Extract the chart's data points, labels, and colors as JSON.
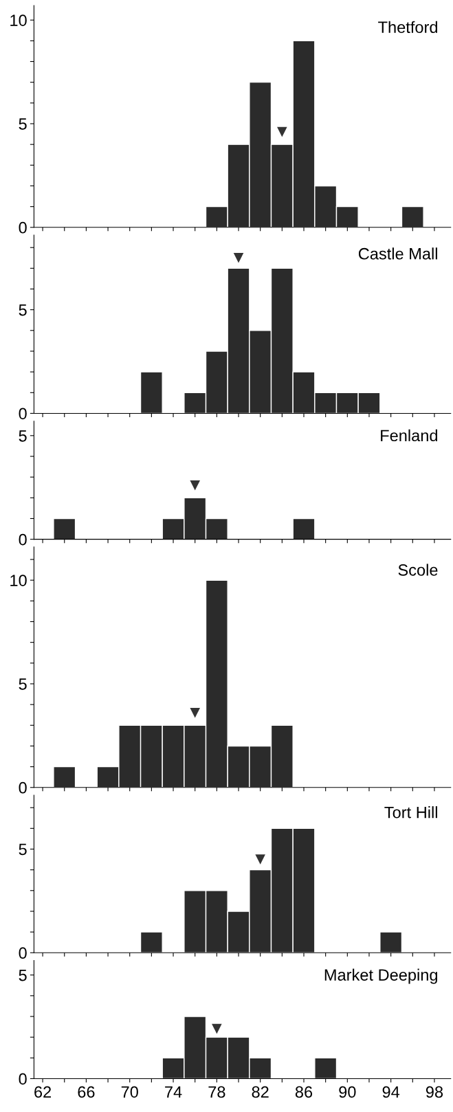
{
  "chart_data": [
    {
      "type": "histogram",
      "title": "Thetford",
      "bins": [
        61,
        63,
        65,
        67,
        69,
        71,
        73,
        75,
        77,
        79,
        81,
        83,
        85,
        87,
        89,
        91,
        93,
        95,
        97,
        99
      ],
      "xlim": [
        61.2,
        99.5
      ],
      "xticks": [
        {
          "value": 62,
          "label": null
        },
        {
          "value": 64,
          "label": null
        },
        {
          "value": 66,
          "label": null
        },
        {
          "value": 68,
          "label": null
        },
        {
          "value": 70,
          "label": null
        },
        {
          "value": 72,
          "label": null
        },
        {
          "value": 74,
          "label": null
        },
        {
          "value": 76,
          "label": null
        },
        {
          "value": 78,
          "label": null
        },
        {
          "value": 80,
          "label": null
        },
        {
          "value": 82,
          "label": null
        },
        {
          "value": 84,
          "label": null
        },
        {
          "value": 86,
          "label": null
        },
        {
          "value": 88,
          "label": null
        },
        {
          "value": 90,
          "label": null
        },
        {
          "value": 92,
          "label": null
        },
        {
          "value": 94,
          "label": null
        },
        {
          "value": 96,
          "label": null
        },
        {
          "value": 98,
          "label": null
        }
      ],
      "ylim": [
        0,
        10.7
      ],
      "yticks": [
        0,
        {
          "value": 1,
          "label": null
        },
        {
          "value": 2,
          "label": null
        },
        {
          "value": 3,
          "label": null
        },
        {
          "value": 4,
          "label": null
        },
        5,
        {
          "value": 6,
          "label": null
        },
        {
          "value": 7,
          "label": null
        },
        {
          "value": 8,
          "label": null
        },
        {
          "value": 9,
          "label": null
        },
        10
      ],
      "tick_labels": "y",
      "grid": false,
      "legend": false,
      "series": [
        {
          "color": "#2b2b2b",
          "values": [
            0,
            0,
            0,
            0,
            0,
            0,
            0,
            0,
            1,
            4,
            7,
            4,
            9,
            2,
            1,
            0,
            0,
            1,
            0
          ]
        },
        {
          "type": "scatter",
          "marker": "triangle",
          "color": "#333333",
          "x": [
            84
          ],
          "values": [
            4.6
          ]
        }
      ]
    },
    {
      "type": "histogram",
      "title": "Castle Mall",
      "bins": [
        61,
        63,
        65,
        67,
        69,
        71,
        73,
        75,
        77,
        79,
        81,
        83,
        85,
        87,
        89,
        91,
        93,
        95,
        97,
        99
      ],
      "xlim": [
        61.2,
        99.5
      ],
      "xticks": [
        {
          "value": 62,
          "label": null
        },
        {
          "value": 64,
          "label": null
        },
        {
          "value": 66,
          "label": null
        },
        {
          "value": 68,
          "label": null
        },
        {
          "value": 70,
          "label": null
        },
        {
          "value": 72,
          "label": null
        },
        {
          "value": 74,
          "label": null
        },
        {
          "value": 76,
          "label": null
        },
        {
          "value": 78,
          "label": null
        },
        {
          "value": 80,
          "label": null
        },
        {
          "value": 82,
          "label": null
        },
        {
          "value": 84,
          "label": null
        },
        {
          "value": 86,
          "label": null
        },
        {
          "value": 88,
          "label": null
        },
        {
          "value": 90,
          "label": null
        },
        {
          "value": 92,
          "label": null
        },
        {
          "value": 94,
          "label": null
        },
        {
          "value": 96,
          "label": null
        },
        {
          "value": 98,
          "label": null
        }
      ],
      "ylim": [
        0,
        8.6
      ],
      "yticks": [
        0,
        {
          "value": 1,
          "label": null
        },
        {
          "value": 2,
          "label": null
        },
        {
          "value": 3,
          "label": null
        },
        {
          "value": 4,
          "label": null
        },
        5,
        {
          "value": 6,
          "label": null
        },
        {
          "value": 7,
          "label": null
        },
        {
          "value": 8,
          "label": null
        }
      ],
      "tick_labels": "y",
      "grid": false,
      "legend": false,
      "series": [
        {
          "color": "#2b2b2b",
          "values": [
            0,
            0,
            0,
            0,
            0,
            2,
            0,
            1,
            3,
            7,
            4,
            7,
            2,
            1,
            1,
            1,
            0,
            0,
            0
          ]
        },
        {
          "type": "scatter",
          "marker": "triangle",
          "color": "#333333",
          "x": [
            80
          ],
          "values": [
            7.5
          ]
        }
      ]
    },
    {
      "type": "histogram",
      "title": "Fenland",
      "bins": [
        61,
        63,
        65,
        67,
        69,
        71,
        73,
        75,
        77,
        79,
        81,
        83,
        85,
        87,
        89,
        91,
        93,
        95,
        97,
        99
      ],
      "xlim": [
        61.2,
        99.5
      ],
      "xticks": [
        {
          "value": 62,
          "label": null
        },
        {
          "value": 64,
          "label": null
        },
        {
          "value": 66,
          "label": null
        },
        {
          "value": 68,
          "label": null
        },
        {
          "value": 70,
          "label": null
        },
        {
          "value": 72,
          "label": null
        },
        {
          "value": 74,
          "label": null
        },
        {
          "value": 76,
          "label": null
        },
        {
          "value": 78,
          "label": null
        },
        {
          "value": 80,
          "label": null
        },
        {
          "value": 82,
          "label": null
        },
        {
          "value": 84,
          "label": null
        },
        {
          "value": 86,
          "label": null
        },
        {
          "value": 88,
          "label": null
        },
        {
          "value": 90,
          "label": null
        },
        {
          "value": 92,
          "label": null
        },
        {
          "value": 94,
          "label": null
        },
        {
          "value": 96,
          "label": null
        },
        {
          "value": 98,
          "label": null
        }
      ],
      "ylim": [
        0,
        5.7
      ],
      "yticks": [
        0,
        {
          "value": 1,
          "label": null
        },
        {
          "value": 2,
          "label": null
        },
        {
          "value": 3,
          "label": null
        },
        {
          "value": 4,
          "label": null
        },
        5
      ],
      "tick_labels": "y",
      "grid": false,
      "legend": false,
      "series": [
        {
          "color": "#2b2b2b",
          "values": [
            0,
            1,
            0,
            0,
            0,
            0,
            1,
            2,
            1,
            0,
            0,
            0,
            1,
            0,
            0,
            0,
            0,
            0,
            0
          ]
        },
        {
          "type": "scatter",
          "marker": "triangle",
          "color": "#333333",
          "x": [
            76
          ],
          "values": [
            2.6
          ]
        }
      ]
    },
    {
      "type": "histogram",
      "title": "Scole",
      "bins": [
        61,
        63,
        65,
        67,
        69,
        71,
        73,
        75,
        77,
        79,
        81,
        83,
        85,
        87,
        89,
        91,
        93,
        95,
        97,
        99
      ],
      "xlim": [
        61.2,
        99.5
      ],
      "xticks": [
        {
          "value": 62,
          "label": null
        },
        {
          "value": 64,
          "label": null
        },
        {
          "value": 66,
          "label": null
        },
        {
          "value": 68,
          "label": null
        },
        {
          "value": 70,
          "label": null
        },
        {
          "value": 72,
          "label": null
        },
        {
          "value": 74,
          "label": null
        },
        {
          "value": 76,
          "label": null
        },
        {
          "value": 78,
          "label": null
        },
        {
          "value": 80,
          "label": null
        },
        {
          "value": 82,
          "label": null
        },
        {
          "value": 84,
          "label": null
        },
        {
          "value": 86,
          "label": null
        },
        {
          "value": 88,
          "label": null
        },
        {
          "value": 90,
          "label": null
        },
        {
          "value": 92,
          "label": null
        },
        {
          "value": 94,
          "label": null
        },
        {
          "value": 96,
          "label": null
        },
        {
          "value": 98,
          "label": null
        }
      ],
      "ylim": [
        0,
        11.6
      ],
      "yticks": [
        0,
        {
          "value": 1,
          "label": null
        },
        {
          "value": 2,
          "label": null
        },
        {
          "value": 3,
          "label": null
        },
        {
          "value": 4,
          "label": null
        },
        5,
        {
          "value": 6,
          "label": null
        },
        {
          "value": 7,
          "label": null
        },
        {
          "value": 8,
          "label": null
        },
        {
          "value": 9,
          "label": null
        },
        10,
        {
          "value": 11,
          "label": null
        }
      ],
      "tick_labels": "y",
      "grid": false,
      "legend": false,
      "series": [
        {
          "color": "#2b2b2b",
          "values": [
            0,
            1,
            0,
            1,
            3,
            3,
            3,
            3,
            10,
            2,
            2,
            3,
            0,
            0,
            0,
            0,
            0,
            0,
            0
          ]
        },
        {
          "type": "scatter",
          "marker": "triangle",
          "color": "#333333",
          "x": [
            76
          ],
          "values": [
            3.6
          ]
        }
      ]
    },
    {
      "type": "histogram",
      "title": "Tort Hill",
      "bins": [
        61,
        63,
        65,
        67,
        69,
        71,
        73,
        75,
        77,
        79,
        81,
        83,
        85,
        87,
        89,
        91,
        93,
        95,
        97,
        99
      ],
      "xlim": [
        61.2,
        99.5
      ],
      "xticks": [
        {
          "value": 62,
          "label": null
        },
        {
          "value": 64,
          "label": null
        },
        {
          "value": 66,
          "label": null
        },
        {
          "value": 68,
          "label": null
        },
        {
          "value": 70,
          "label": null
        },
        {
          "value": 72,
          "label": null
        },
        {
          "value": 74,
          "label": null
        },
        {
          "value": 76,
          "label": null
        },
        {
          "value": 78,
          "label": null
        },
        {
          "value": 80,
          "label": null
        },
        {
          "value": 82,
          "label": null
        },
        {
          "value": 84,
          "label": null
        },
        {
          "value": 86,
          "label": null
        },
        {
          "value": 88,
          "label": null
        },
        {
          "value": 90,
          "label": null
        },
        {
          "value": 92,
          "label": null
        },
        {
          "value": 94,
          "label": null
        },
        {
          "value": 96,
          "label": null
        },
        {
          "value": 98,
          "label": null
        }
      ],
      "ylim": [
        0,
        7.6
      ],
      "yticks": [
        0,
        {
          "value": 1,
          "label": null
        },
        {
          "value": 2,
          "label": null
        },
        {
          "value": 3,
          "label": null
        },
        {
          "value": 4,
          "label": null
        },
        5,
        {
          "value": 6,
          "label": null
        },
        {
          "value": 7,
          "label": null
        }
      ],
      "tick_labels": "y",
      "grid": false,
      "legend": false,
      "series": [
        {
          "color": "#2b2b2b",
          "values": [
            0,
            0,
            0,
            0,
            0,
            1,
            0,
            3,
            3,
            2,
            4,
            6,
            6,
            0,
            0,
            0,
            1,
            0,
            0
          ]
        },
        {
          "type": "scatter",
          "marker": "triangle",
          "color": "#333333",
          "x": [
            82
          ],
          "values": [
            4.5
          ]
        }
      ]
    },
    {
      "type": "histogram",
      "title": "Market Deeping",
      "bins": [
        61,
        63,
        65,
        67,
        69,
        71,
        73,
        75,
        77,
        79,
        81,
        83,
        85,
        87,
        89,
        91,
        93,
        95,
        97,
        99
      ],
      "xlim": [
        61.2,
        99.5
      ],
      "xticks": [
        {
          "value": 62,
          "label": "62"
        },
        {
          "value": 64,
          "label": null
        },
        {
          "value": 66,
          "label": "66"
        },
        {
          "value": 68,
          "label": null
        },
        {
          "value": 70,
          "label": "70"
        },
        {
          "value": 72,
          "label": null
        },
        {
          "value": 74,
          "label": "74"
        },
        {
          "value": 76,
          "label": null
        },
        {
          "value": 78,
          "label": "78"
        },
        {
          "value": 80,
          "label": null
        },
        {
          "value": 82,
          "label": "82"
        },
        {
          "value": 84,
          "label": null
        },
        {
          "value": 86,
          "label": "86"
        },
        {
          "value": 88,
          "label": null
        },
        {
          "value": 90,
          "label": "90"
        },
        {
          "value": 92,
          "label": null
        },
        {
          "value": 94,
          "label": "94"
        },
        {
          "value": 96,
          "label": null
        },
        {
          "value": 98,
          "label": "98"
        }
      ],
      "ylim": [
        0,
        5.7
      ],
      "yticks": [
        0,
        {
          "value": 1,
          "label": null
        },
        {
          "value": 2,
          "label": null
        },
        {
          "value": 3,
          "label": null
        },
        {
          "value": 4,
          "label": null
        },
        5
      ],
      "grid": false,
      "legend": false,
      "series": [
        {
          "color": "#2b2b2b",
          "values": [
            0,
            0,
            0,
            0,
            0,
            0,
            1,
            3,
            2,
            2,
            1,
            0,
            0,
            1,
            0,
            0,
            0,
            0,
            0
          ]
        },
        {
          "type": "scatter",
          "marker": "triangle",
          "color": "#333333",
          "x": [
            78
          ],
          "values": [
            2.4
          ]
        }
      ]
    }
  ]
}
